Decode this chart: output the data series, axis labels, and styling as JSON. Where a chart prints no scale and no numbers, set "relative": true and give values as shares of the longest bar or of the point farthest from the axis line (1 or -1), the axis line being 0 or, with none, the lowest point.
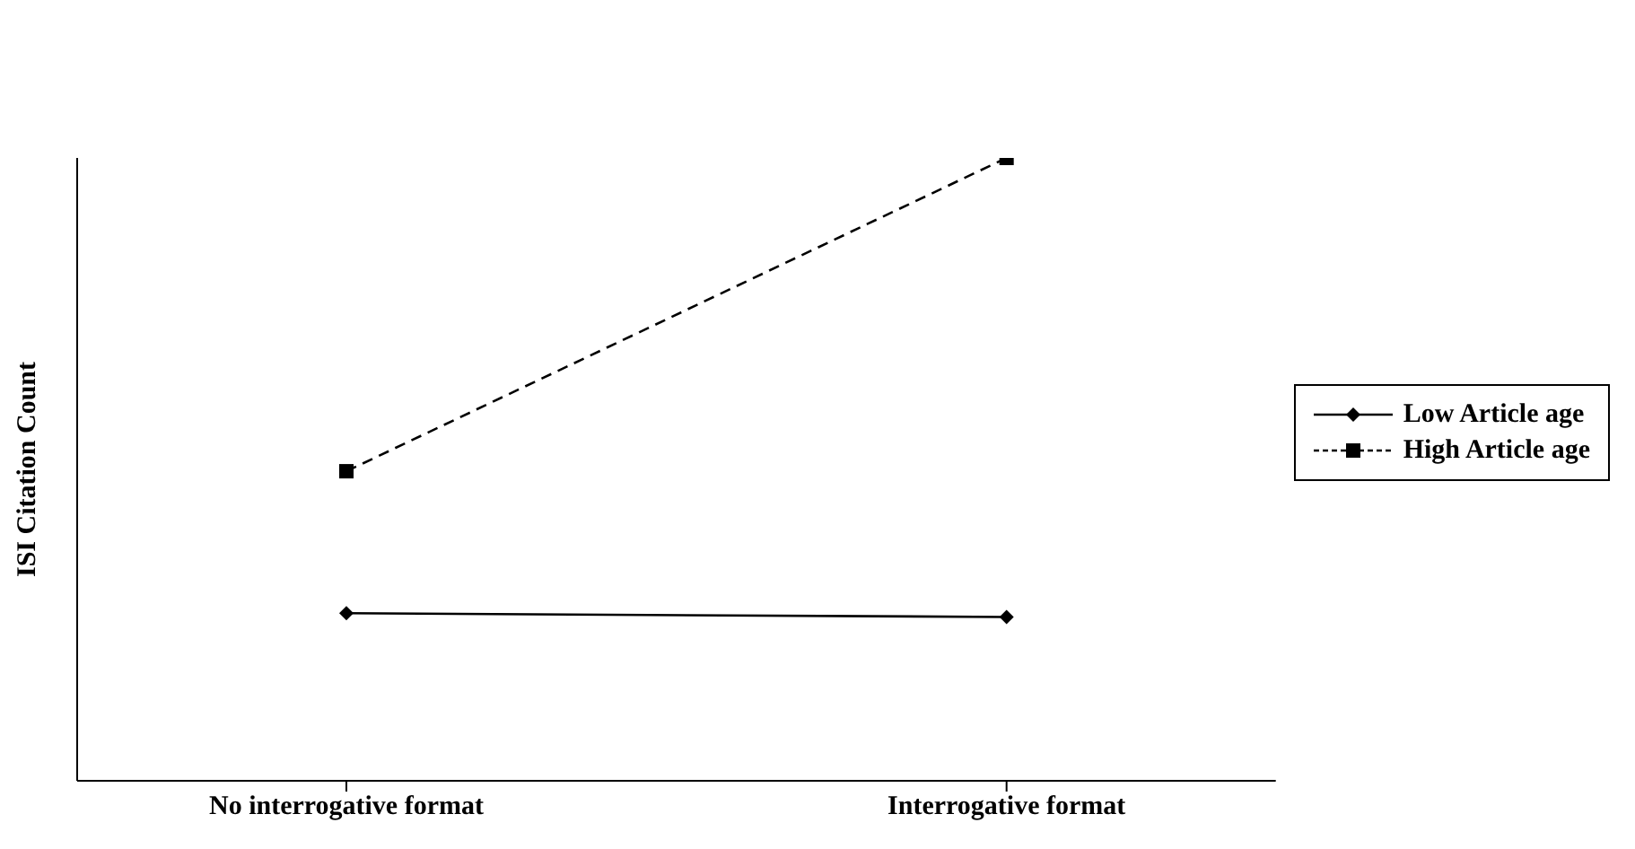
{
  "chart_data": {
    "type": "line",
    "relative": true,
    "ylabel": "ISI Citation Count",
    "categories": [
      "No interrogative format",
      "Interrogative format"
    ],
    "series": [
      {
        "name": "Low Article age",
        "color": "#000000",
        "values": [
          0.269,
          0.263
        ],
        "marker": "diamond",
        "line_style": "solid"
      },
      {
        "name": "High Article age",
        "color": "#000000",
        "values": [
          0.497,
          1
        ],
        "marker": "square",
        "line_style": "dashed"
      }
    ],
    "legend": "right",
    "grid": false
  }
}
